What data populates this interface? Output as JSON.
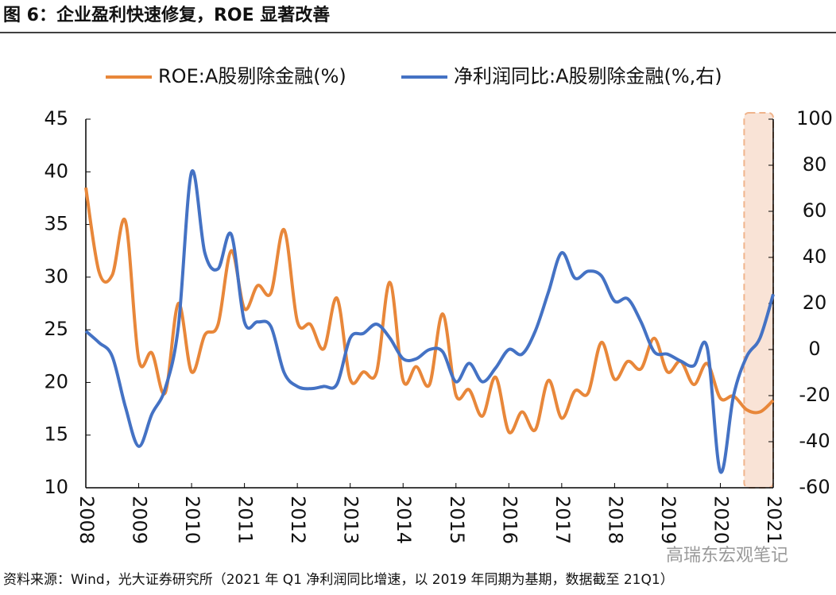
{
  "chart_data": {
    "type": "line",
    "title": "图 6：企业盈利快速修复，ROE 显著改善",
    "source": "资料来源：Wind，光大证券研究所（2021 年 Q1 净利润同比增速，以 2019 年同期为基期，数据截至 21Q1）",
    "watermark": "高瑞东宏观笔记",
    "x": [
      2008,
      2008.25,
      2008.5,
      2008.75,
      2009,
      2009.25,
      2009.5,
      2009.75,
      2010,
      2010.25,
      2010.5,
      2010.75,
      2011,
      2011.25,
      2011.5,
      2011.75,
      2012,
      2012.25,
      2012.5,
      2012.75,
      2013,
      2013.25,
      2013.5,
      2013.75,
      2014,
      2014.25,
      2014.5,
      2014.75,
      2015,
      2015.25,
      2015.5,
      2015.75,
      2016,
      2016.25,
      2016.5,
      2016.75,
      2017,
      2017.25,
      2017.5,
      2017.75,
      2018,
      2018.25,
      2018.5,
      2018.75,
      2019,
      2019.25,
      2019.5,
      2019.75,
      2020,
      2020.25,
      2020.5,
      2020.75,
      2021
    ],
    "xlim": [
      2008,
      2021
    ],
    "xticks": [
      2008,
      2009,
      2010,
      2011,
      2012,
      2013,
      2014,
      2015,
      2016,
      2017,
      2018,
      2019,
      2020,
      2021
    ],
    "ylim": [
      10,
      45
    ],
    "yticks": [
      10,
      15,
      20,
      25,
      30,
      35,
      40,
      45
    ],
    "y2lim": [
      -60,
      100
    ],
    "y2ticks": [
      -60,
      -40,
      -20,
      0,
      20,
      40,
      60,
      80,
      100
    ],
    "highlight_range": [
      2020.45,
      2021
    ],
    "highlight_color": "#f9e3d6",
    "series": [
      {
        "name": "ROE:A股剔除金融(%)",
        "color": "#e8873a",
        "values": [
          38.5,
          30.5,
          30.2,
          35.3,
          22.2,
          22.8,
          19,
          27.5,
          21,
          24.5,
          25.5,
          32.5,
          27,
          29.2,
          28.5,
          34.5,
          25.8,
          25.5,
          23.2,
          28,
          20.3,
          21,
          21,
          29.5,
          20.2,
          21.5,
          19.8,
          26.5,
          18.8,
          19.3,
          16.8,
          20.5,
          15.3,
          17.2,
          15.5,
          20.2,
          16.6,
          19.2,
          19,
          23.8,
          20.3,
          22,
          21.3,
          24.2,
          21,
          22,
          19.8,
          21.8,
          18.5,
          18.7,
          17.4,
          17.2,
          18.3
        ]
      },
      {
        "name": "净利润同比:A股剔除金融(%,右)",
        "color": "#4472c4",
        "axis": "y2",
        "values": [
          8,
          3,
          -3,
          -25,
          -42,
          -28,
          -17,
          10,
          77,
          42,
          35,
          50,
          12,
          12,
          10,
          -10,
          -16,
          -17,
          -16,
          -15,
          5,
          7,
          11,
          5,
          -4,
          -4,
          0,
          -1,
          -14,
          -6,
          -14,
          -8,
          0,
          -2,
          8,
          25,
          42,
          31,
          34,
          32,
          21,
          22,
          12,
          -1,
          -2,
          -5,
          -7,
          1,
          -53,
          -20,
          -3,
          5,
          24
        ]
      }
    ]
  }
}
